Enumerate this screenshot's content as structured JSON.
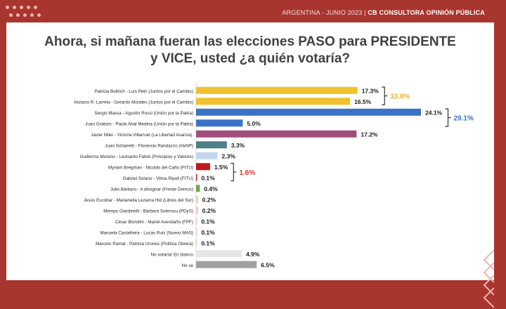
{
  "header": {
    "left": "ARGENTINA  - JUNIO 2023 | ",
    "right": "CB CONSULTORA OPINIÓN PÚBLICA"
  },
  "title_line1": "Ahora, si mañana fueran las elecciones PASO para PRESIDENTE",
  "title_line2": "y VICE, usted ¿a quién votaría?",
  "colors": {
    "background": "#a8352e",
    "juntos": "#f2c12e",
    "union": "#3a73c6",
    "libertad": "#a24e7d",
    "hacemos": "#4b8089",
    "principios": "#c2d5ef",
    "fitu": "#c0171f",
    "frente_demos": "#6aaa4e",
    "others": "#f0c8b4",
    "blanco": "#e6e6e6",
    "nose": "#a0a0a0",
    "group_juntos": "#f2b128",
    "group_union": "#3a73c6",
    "group_fitu": "#e03131"
  },
  "chart_data": {
    "type": "bar",
    "orientation": "horizontal",
    "categories": [
      "Patricia Bullrich - Luis Petri (Juntos por el Cambio)",
      "Horacio R. Larreta - Gerardo Morales (Juntos por el Cambio)",
      "Sergio Massa - Agustín Rossi (Unión por la Patria)",
      "Juan Grabois - Paula Abal Medina (Unión por la Patria)",
      "Javier Milei - Victoria Villarruel (La Libertad Avanza).",
      "Juan Schiaretti - Florencio Randazzo (HxNP)",
      "Guillermo Moreno - Leonardo Fabré (Principios y Valores)",
      "Myriam Bregman - Nicolás del Caño (FITU)",
      "Gabriel Solano - Vilma Ripoll (FITU)",
      "Julio Bárbaro - A designar (Frente Demos)",
      "Jesús Escobar - Marianella Lezama Hid (Libres del Sur)",
      "Mempo Giardinelli - Bárbara Solernou (PDyS)",
      "César Biondini - Mariel Avendaño (FPF)",
      "Manuela Castañeira - Lucas Ruiz (Nuevo MAS)",
      "Marcelo Ramal - Patricia Urones (Política Obrera)",
      "No votaría/ En blanco",
      "No se"
    ],
    "values": [
      17.3,
      16.5,
      24.1,
      5.0,
      17.2,
      3.3,
      2.3,
      1.5,
      0.1,
      0.4,
      0.2,
      0.2,
      0.1,
      0.1,
      0.1,
      4.9,
      6.5
    ],
    "value_labels": [
      "17.3%",
      "16.5%",
      "24.1%",
      "5.0%",
      "17.2%",
      "3.3%",
      "2.3%",
      "1.5%",
      "0.1%",
      "0.4%",
      "0.2%",
      "0.2%",
      "0.1%",
      "0.1%",
      "0.1%",
      "4.9%",
      "6.5%"
    ],
    "bar_colors": [
      "juntos",
      "juntos",
      "union",
      "union",
      "libertad",
      "hacemos",
      "principios",
      "fitu",
      "fitu",
      "frente_demos",
      "others",
      "others",
      "others",
      "others",
      "others",
      "blanco",
      "nose"
    ],
    "group_totals": [
      {
        "label": "33.8%",
        "rows": [
          0,
          1
        ],
        "color": "group_juntos"
      },
      {
        "label": "29.1%",
        "rows": [
          2,
          3
        ],
        "color": "group_union"
      },
      {
        "label": "1.6%",
        "rows": [
          7,
          8
        ],
        "color": "group_fitu"
      }
    ],
    "xlim": [
      0,
      24.1
    ],
    "xlabel": "",
    "ylabel": "",
    "grid": false,
    "legend": "none"
  }
}
